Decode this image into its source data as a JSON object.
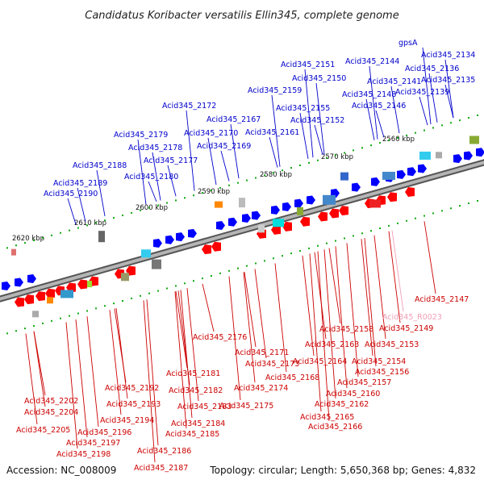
{
  "title": "Candidatus Koribacter versatilis Ellin345, complete genome",
  "footer": {
    "accession": "Accession: NC_008009",
    "summary": "Topology: circular; Length: 5,650,368 bp; Genes: 4,832"
  },
  "colors": {
    "forward_strand": "#0000ff",
    "reverse_strand": "#ff0000",
    "rna_feature": "#f0a0b8",
    "backbone": "#808080"
  },
  "kbp_ticks": [
    "2620 kbp",
    "2610 kbp",
    "2600 kbp",
    "2590 kbp",
    "2580 kbp",
    "2570 kbp",
    "2560 kbp"
  ],
  "upper_labels": [
    "gpsA",
    "Acid345_2134",
    "Acid345_2144",
    "Acid345_2136",
    "Acid345_2151",
    "Acid345_2141",
    "Acid345_2135",
    "Acid345_2150",
    "Acid345_2139",
    "Acid345_2159",
    "Acid345_2148",
    "Acid345_2172",
    "Acid345_2146",
    "Acid345_2155",
    "Acid345_2167",
    "Acid345_2152",
    "Acid345_2179",
    "Acid345_2170",
    "Acid345_2161",
    "Acid345_2178",
    "Acid345_2169",
    "Acid345_2177",
    "Acid345_2188",
    "Acid345_2180",
    "Acid345_2189",
    "Acid345_2190"
  ],
  "lower_labels": [
    "Acid345_2147",
    "Acid345_R0023",
    "Acid345_2149",
    "Acid345_2158",
    "Acid345_2176",
    "Acid345_2153",
    "Acid345_2163",
    "Acid345_2171",
    "Acid345_2164",
    "Acid345_2154",
    "Acid345_2173",
    "Acid345_2156",
    "Acid345_2181",
    "Acid345_2168",
    "Acid345_2157",
    "Acid345_2192",
    "Acid345_2182",
    "Acid345_2174",
    "Acid345_2160",
    "Acid345_2202",
    "Acid345_2193",
    "Acid345_2183",
    "Acid345_2175",
    "Acid345_2162",
    "Acid345_2204",
    "Acid345_2194",
    "Acid345_2184",
    "Acid345_2165",
    "Acid345_2205",
    "Acid345_2196",
    "Acid345_2185",
    "Acid345_2166",
    "Acid345_2197",
    "Acid345_2198",
    "Acid345_2186",
    "Acid345_2187"
  ]
}
